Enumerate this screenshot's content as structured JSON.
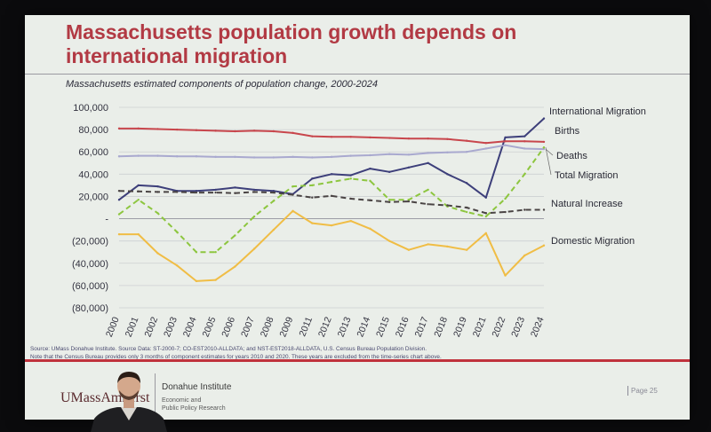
{
  "slide": {
    "title": "Massachusetts population growth depends on international migration",
    "subtitle": "Massachusetts estimated components of population change, 2000-2024",
    "source_line1": "Source: UMass Donahue Institute. Source Data: ST-2000-7; CO-EST2010-ALLDATA; and NST-EST2018-ALLDATA, U.S. Census Bureau Population Division.",
    "source_line2": "Note that the Census Bureau provides only 3 months of component estimates for years 2010 and 2020. These years are excluded from the time-series chart above.",
    "footer": {
      "logo": "UMassAmherst",
      "institute": "Donahue Institute",
      "subtitle_line1": "Economic and",
      "subtitle_line2": "Public Policy Research",
      "page": "Page 25"
    }
  },
  "colors": {
    "title": "#b23a44",
    "footer_rule": "#c0323c",
    "slide_bg": "#eaeee9"
  },
  "chart_data": {
    "type": "line",
    "title": "",
    "xlabel": "",
    "ylabel": "",
    "ylim": [
      -80000,
      100000
    ],
    "y_ticks": [
      "100,000",
      "80,000",
      "60,000",
      "40,000",
      "20,000",
      "-",
      "(20,000)",
      "(40,000)",
      "(60,000)",
      "(80,000)"
    ],
    "y_tick_values": [
      100000,
      80000,
      60000,
      40000,
      20000,
      0,
      -20000,
      -40000,
      -60000,
      -80000
    ],
    "x": [
      "2000",
      "2001",
      "2002",
      "2003",
      "2004",
      "2005",
      "2006",
      "2007",
      "2008",
      "2009",
      "2011",
      "2012",
      "2013",
      "2014",
      "2015",
      "2016",
      "2017",
      "2018",
      "2019",
      "2021",
      "2022",
      "2023",
      "2024"
    ],
    "grid": true,
    "legend": "line-end labels on right",
    "series": [
      {
        "name": "International Migration",
        "color": "#3d3f7a",
        "dash": "solid",
        "values": [
          17000,
          30000,
          29000,
          25000,
          25000,
          26000,
          28000,
          26000,
          25000,
          22000,
          36000,
          40000,
          39000,
          45000,
          42000,
          46000,
          50000,
          40000,
          32000,
          19000,
          73000,
          74000,
          90000
        ]
      },
      {
        "name": "Births",
        "color": "#c8464c",
        "dash": "solid",
        "values": [
          81000,
          81000,
          80500,
          80000,
          79500,
          79000,
          78500,
          79000,
          78500,
          77000,
          74000,
          73500,
          73500,
          73000,
          72500,
          72000,
          72000,
          71500,
          70000,
          68000,
          69500,
          69500,
          69000
        ]
      },
      {
        "name": "Deaths",
        "color": "#a9a9cf",
        "dash": "solid",
        "values": [
          56000,
          56500,
          56500,
          56000,
          56000,
          55500,
          55500,
          55000,
          55000,
          55500,
          55000,
          55500,
          56500,
          57000,
          58000,
          57500,
          59000,
          59500,
          60000,
          63000,
          66000,
          63000,
          62500
        ]
      },
      {
        "name": "Total Migration",
        "color": "#8dc63f",
        "dash": "dashed",
        "values": [
          4000,
          17000,
          5000,
          -12000,
          -30000,
          -30000,
          -15000,
          2000,
          16000,
          29000,
          30000,
          33000,
          36000,
          34000,
          17000,
          17000,
          26000,
          11000,
          6000,
          2000,
          18000,
          40000,
          64000
        ]
      },
      {
        "name": "Natural Increase",
        "color": "#4a4444",
        "dash": "dashed",
        "values": [
          25000,
          24500,
          24000,
          24000,
          23500,
          23500,
          23000,
          24000,
          23500,
          21500,
          19000,
          20500,
          18000,
          16500,
          15000,
          15500,
          13000,
          12000,
          10000,
          5000,
          6000,
          8000,
          8000
        ]
      },
      {
        "name": "Domestic Migration",
        "color": "#f0bd45",
        "dash": "solid",
        "values": [
          -14000,
          -14000,
          -31000,
          -42000,
          -56000,
          -55000,
          -43000,
          -27000,
          -10000,
          7000,
          -4000,
          -6000,
          -2000,
          -9000,
          -20000,
          -28000,
          -23000,
          -25000,
          -28000,
          -13000,
          -51000,
          -33000,
          -24000
        ]
      }
    ]
  }
}
